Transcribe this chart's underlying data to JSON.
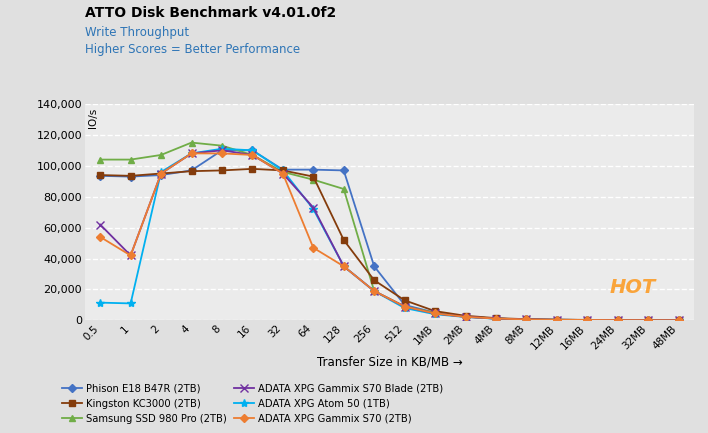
{
  "title": "ATTO Disk Benchmark v4.01.0f2",
  "subtitle1": "Write Throughput",
  "subtitle2": "Higher Scores = Better Performance",
  "xlabel": "Transfer Size in KB/MB →",
  "ylabel": "IO/s",
  "x_labels": [
    "0.5",
    "1",
    "2",
    "4",
    "8",
    "16",
    "32",
    "64",
    "128",
    "256",
    "512",
    "1MB",
    "2MB",
    "4MB",
    "8MB",
    "12MB",
    "16MB",
    "24MB",
    "32MB",
    "48MB"
  ],
  "ylim": [
    0,
    140000
  ],
  "yticks": [
    0,
    20000,
    40000,
    60000,
    80000,
    100000,
    120000,
    140000
  ],
  "series": [
    {
      "label": "Phison E18 B47R (2TB)",
      "color": "#4472C4",
      "marker": "D",
      "markersize": 4,
      "values": [
        93500,
        93000,
        94000,
        97000,
        110000,
        110000,
        97500,
        97500,
        97000,
        35000,
        10000,
        5000,
        2500,
        1200,
        600,
        400,
        300,
        200,
        150,
        100
      ]
    },
    {
      "label": "Samsung SSD 980 Pro (2TB)",
      "color": "#70AD47",
      "marker": "^",
      "markersize": 5,
      "values": [
        104000,
        104000,
        107000,
        115000,
        113000,
        107000,
        96000,
        91000,
        85000,
        19000,
        9000,
        5000,
        2500,
        1200,
        600,
        400,
        300,
        200,
        150,
        100
      ]
    },
    {
      "label": "ADATA XPG Atom 50 (1TB)",
      "color": "#00B0F0",
      "marker": "*",
      "markersize": 6,
      "values": [
        11500,
        11000,
        96000,
        108000,
        111000,
        110000,
        97000,
        72000,
        35000,
        19000,
        8000,
        4000,
        2200,
        1100,
        600,
        400,
        300,
        200,
        150,
        100
      ]
    },
    {
      "label": "Kingston KC3000 (2TB)",
      "color": "#843C0C",
      "marker": "s",
      "markersize": 4,
      "values": [
        94000,
        93500,
        95000,
        96500,
        97000,
        98000,
        97000,
        93000,
        52000,
        26000,
        13000,
        6000,
        3000,
        1500,
        800,
        500,
        350,
        200,
        150,
        100
      ]
    },
    {
      "label": "ADATA XPG Gammix S70 Blade (2TB)",
      "color": "#7030A0",
      "marker": "x",
      "markersize": 6,
      "values": [
        62000,
        42000,
        95000,
        108000,
        110000,
        107000,
        95000,
        73000,
        35000,
        19000,
        9000,
        4500,
        2300,
        1200,
        650,
        400,
        300,
        200,
        150,
        100
      ]
    },
    {
      "label": "ADATA XPG Gammix S70 (2TB)",
      "color": "#ED7D31",
      "marker": "D",
      "markersize": 4,
      "values": [
        54000,
        42000,
        95000,
        108000,
        108000,
        107000,
        95000,
        47000,
        35000,
        19000,
        9000,
        4500,
        2300,
        1200,
        650,
        400,
        300,
        200,
        150,
        100
      ]
    }
  ],
  "bg_color": "#E0E0E0",
  "plot_bg_color": "#EBEBEB",
  "watermark_text": "HOT",
  "watermark_color": "#FF8C00"
}
